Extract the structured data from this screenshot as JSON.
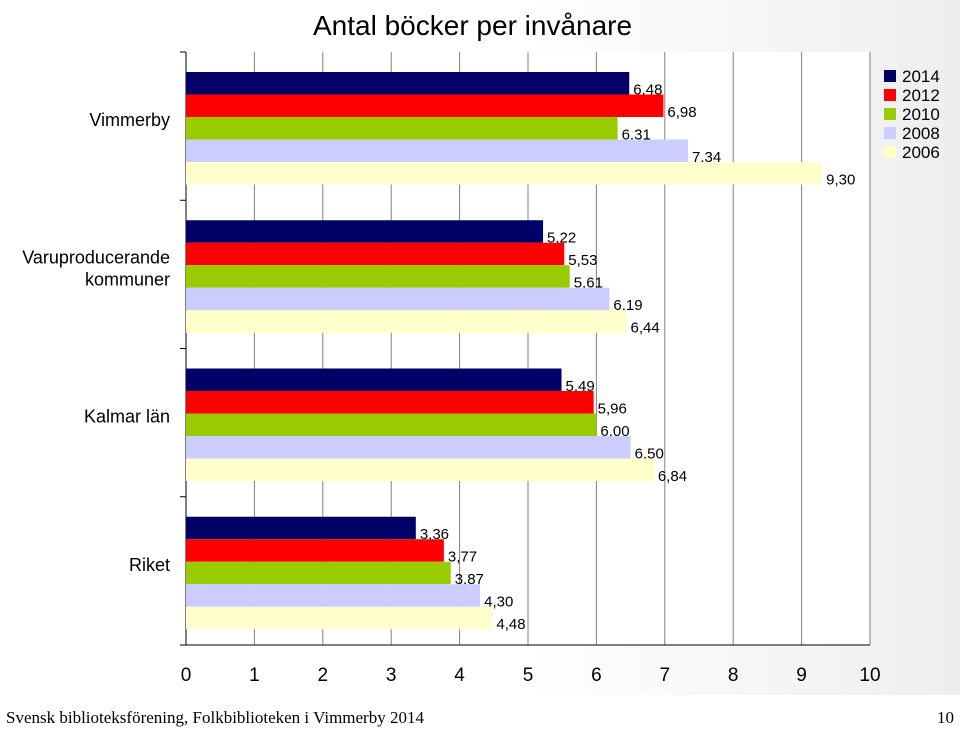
{
  "footer": {
    "source": "Svensk biblioteksförening, Folkbiblioteken i Vimmerby 2014",
    "page_number": "10"
  },
  "chart_data": {
    "type": "bar",
    "orientation": "horizontal",
    "title": "Antal böcker per invånare",
    "xlabel": "",
    "ylabel": "",
    "xlim": [
      0,
      10
    ],
    "x_ticks": [
      "0",
      "1",
      "2",
      "3",
      "4",
      "5",
      "6",
      "7",
      "8",
      "9",
      "10"
    ],
    "grid": "vertical",
    "legend_position": "top-right",
    "categories": [
      [
        "Vimmerby"
      ],
      [
        "Varuproducerande",
        "kommuner"
      ],
      [
        "Kalmar län"
      ],
      [
        "Riket"
      ]
    ],
    "series": [
      {
        "name": "2014",
        "color": "#000066",
        "values": [
          6.48,
          5.22,
          5.49,
          3.36
        ],
        "labels": [
          "6,48",
          "5,22",
          "5,49",
          "3,36"
        ]
      },
      {
        "name": "2012",
        "color": "#ff0000",
        "values": [
          6.98,
          5.53,
          5.96,
          3.77
        ],
        "labels": [
          "6,98",
          "5,53",
          "5,96",
          "3,77"
        ]
      },
      {
        "name": "2010",
        "color": "#99cc00",
        "values": [
          6.31,
          5.61,
          6.0,
          3.87
        ],
        "labels": [
          "6,31",
          "5,61",
          "6,00",
          "3,87"
        ]
      },
      {
        "name": "2008",
        "color": "#ccccff",
        "values": [
          7.34,
          6.19,
          6.5,
          4.3
        ],
        "labels": [
          "7,34",
          "6,19",
          "6,50",
          "4,30"
        ]
      },
      {
        "name": "2006",
        "color": "#ffffcc",
        "values": [
          9.3,
          6.44,
          6.84,
          4.48
        ],
        "labels": [
          "9,30",
          "6,44",
          "6,84",
          "4,48"
        ]
      }
    ]
  }
}
